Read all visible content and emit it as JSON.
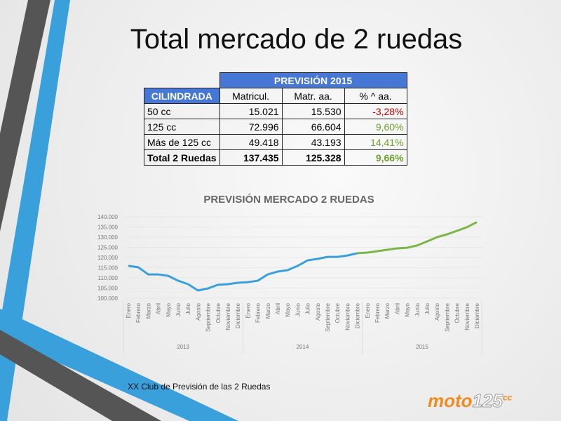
{
  "title": "Total mercado de 2 ruedas",
  "table": {
    "super_header": "PREVISIÓN 2015",
    "header": [
      "CILINDRADA",
      "Matricul.",
      "Matr. aa.",
      "% ^ aa."
    ],
    "rows": [
      [
        "50 cc",
        "15.021",
        "15.530",
        "-3,28%"
      ],
      [
        "125 cc",
        "72.996",
        "66.604",
        "9,60%"
      ],
      [
        "Más de 125 cc",
        "49.418",
        "43.193",
        "14,41%"
      ],
      [
        "Total 2 Ruedas",
        "137.435",
        "125.328",
        "9,66%"
      ]
    ]
  },
  "chart_data": {
    "type": "line",
    "title": "PREVISIÓN MERCADO 2 RUEDAS",
    "categories": [
      "Enero",
      "Febrero",
      "Marzo",
      "Abril",
      "Mayo",
      "Junio",
      "Julio",
      "Agosto",
      "Septiembre",
      "Octubre",
      "Noviembre",
      "Diciembre",
      "Enero",
      "Febrero",
      "Marzo",
      "Abril",
      "Mayo",
      "Junio",
      "Julio",
      "Agosto",
      "Septiembre",
      "Octubre",
      "Noviembre",
      "Diciembre",
      "Enero",
      "Febrero",
      "Marzo",
      "Abril",
      "Mayo",
      "Junio",
      "Julio",
      "Agosto",
      "Septiembre",
      "Octubre",
      "Noviembre",
      "Diciembre"
    ],
    "groups": [
      "2013",
      "2014",
      "2015"
    ],
    "series": [
      {
        "color": "#3aa0dc",
        "values": [
          115900,
          115200,
          111700,
          111700,
          111000,
          108600,
          106900,
          103800,
          104800,
          106600,
          106900,
          107600,
          107900,
          108600,
          111700,
          113100,
          113800,
          115900,
          118600,
          119300,
          120300,
          120300,
          121000,
          122100,
          null,
          null,
          null,
          null,
          null,
          null,
          null,
          null,
          null,
          null,
          null,
          null
        ]
      },
      {
        "color": "#7ab648",
        "values": [
          null,
          null,
          null,
          null,
          null,
          null,
          null,
          null,
          null,
          null,
          null,
          null,
          null,
          null,
          null,
          null,
          null,
          null,
          null,
          null,
          null,
          null,
          null,
          122100,
          122400,
          123100,
          123800,
          124500,
          124800,
          125900,
          127900,
          130000,
          131400,
          133100,
          134900,
          137400
        ]
      }
    ],
    "ylim": [
      100000,
      140000
    ],
    "yticks": [
      {
        "value": 100000,
        "label": "100.000"
      },
      {
        "value": 105000,
        "label": "105.000"
      },
      {
        "value": 110000,
        "label": "110.000"
      },
      {
        "value": 115000,
        "label": "115.000"
      },
      {
        "value": 120000,
        "label": "120.000"
      },
      {
        "value": 125000,
        "label": "125.000"
      },
      {
        "value": 130000,
        "label": "130.000"
      },
      {
        "value": 135000,
        "label": "135.000"
      },
      {
        "value": 140000,
        "label": "140.000"
      }
    ],
    "grid": true
  },
  "footer": "XX Club de Previsión de las 2 Ruedas",
  "logo": {
    "main": "moto",
    "num": "125",
    "sup": "cc"
  }
}
